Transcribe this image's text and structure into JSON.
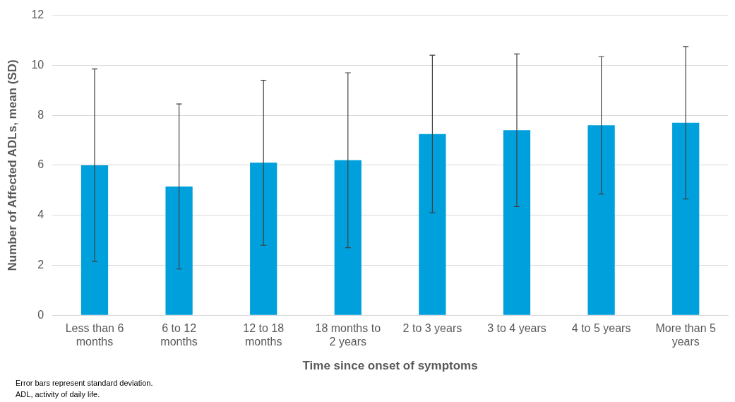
{
  "chart_data": {
    "type": "bar",
    "xlabel": "Time since onset of symptoms",
    "ylabel": "Number of Affected ADLs, mean (SD)",
    "categories": [
      "Less than 6 months",
      "6 to 12 months",
      "12 to 18 months",
      "18 months to 2 years",
      "2 to 3 years",
      "3 to 4 years",
      "4 to 5 years",
      "More than 5 years"
    ],
    "values": [
      6.0,
      5.15,
      6.1,
      6.2,
      7.25,
      7.4,
      7.6,
      7.7
    ],
    "errors": [
      3.85,
      3.3,
      3.3,
      3.5,
      3.15,
      3.05,
      2.75,
      3.05
    ],
    "color": "#00a0dc",
    "ylim": [
      0,
      12
    ],
    "yticks": [
      0,
      2,
      4,
      6,
      8,
      10,
      12
    ],
    "grid": "y",
    "legend": false,
    "annotations": [
      "Error bars represent standard deviation.",
      "ADL, activity of daily life."
    ]
  }
}
